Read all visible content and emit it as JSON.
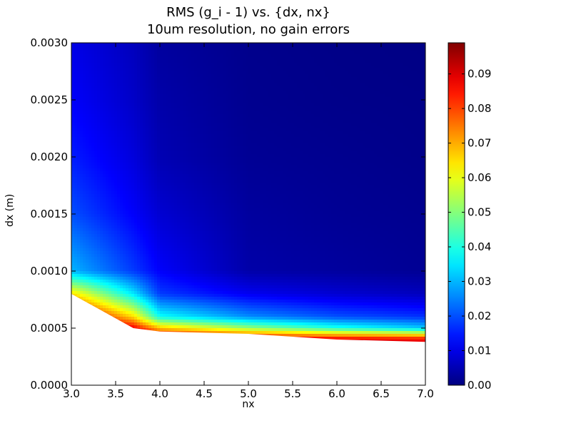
{
  "chart_data": {
    "type": "contour",
    "title": "RMS (g_i - 1) vs. {dx, nx}",
    "subtitle": "10um resolution, no gain errors",
    "xlabel": "nx",
    "ylabel": "dx (m)",
    "xlim": [
      3.0,
      7.0
    ],
    "ylim": [
      0.0,
      0.003
    ],
    "xticks": [
      "3.0",
      "3.5",
      "4.0",
      "4.5",
      "5.0",
      "5.5",
      "6.0",
      "6.5",
      "7.0"
    ],
    "yticks": [
      "0.0000",
      "0.0005",
      "0.0010",
      "0.0015",
      "0.0020",
      "0.0025",
      "0.0030"
    ],
    "colorbar": {
      "colormap": "jet",
      "range": [
        0.0,
        0.099
      ],
      "ticks": [
        "0.00",
        "0.01",
        "0.02",
        "0.03",
        "0.04",
        "0.05",
        "0.06",
        "0.07",
        "0.08",
        "0.09"
      ]
    },
    "x": [
      3.0,
      3.7,
      4.0,
      5.0,
      6.0,
      7.0
    ],
    "y": [
      0.0004,
      0.0005,
      0.0006,
      0.0008,
      0.001,
      0.0015,
      0.002,
      0.0025,
      0.003
    ],
    "z": [
      [
        0.099,
        0.099,
        0.095,
        0.093,
        0.09,
        0.088
      ],
      [
        0.099,
        0.088,
        0.068,
        0.052,
        0.04,
        0.032
      ],
      [
        0.095,
        0.065,
        0.038,
        0.026,
        0.02,
        0.017
      ],
      [
        0.065,
        0.035,
        0.018,
        0.011,
        0.008,
        0.006
      ],
      [
        0.03,
        0.018,
        0.012,
        0.004,
        0.003,
        0.002
      ],
      [
        0.02,
        0.012,
        0.008,
        0.003,
        0.002,
        0.0015
      ],
      [
        0.015,
        0.009,
        0.005,
        0.002,
        0.0015,
        0.001
      ],
      [
        0.012,
        0.007,
        0.004,
        0.0015,
        0.001,
        0.0008
      ],
      [
        0.01,
        0.006,
        0.003,
        0.0012,
        0.0008,
        0.0005
      ]
    ],
    "undefined_below": [
      [
        3.0,
        0.0008
      ],
      [
        3.7,
        0.0005
      ],
      [
        4.0,
        0.00047
      ],
      [
        5.0,
        0.00045
      ],
      [
        6.0,
        0.0004
      ],
      [
        7.0,
        0.00038
      ]
    ]
  }
}
